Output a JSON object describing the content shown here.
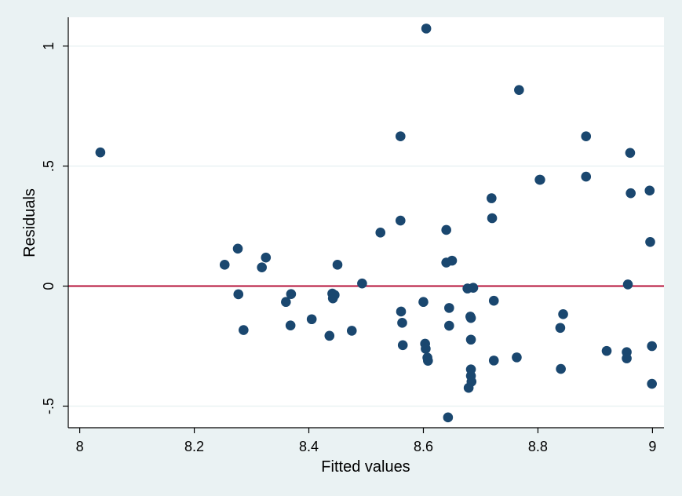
{
  "chart_data": {
    "type": "scatter",
    "title": "",
    "xlabel": "Fitted values",
    "ylabel": "Residuals",
    "xlim": [
      7.98,
      9.02
    ],
    "ylim": [
      -0.59,
      1.12
    ],
    "x_ticks": [
      8,
      8.2,
      8.4,
      8.6,
      8.8,
      9
    ],
    "x_tick_labels": [
      "8",
      "8.2",
      "8.4",
      "8.6",
      "8.8",
      "9"
    ],
    "y_ticks": [
      -0.5,
      0,
      0.5,
      1
    ],
    "y_tick_labels": [
      "-.5",
      "0",
      ".5",
      "1"
    ],
    "grid": "horizontal",
    "reference_line": {
      "y": 0,
      "color": "#b5123a"
    },
    "marker_color": "#1a476f",
    "background_outer": "#eaf2f3",
    "background_plot": "#ffffff",
    "gridline_color": "#eaf2f3",
    "points": [
      [
        8.036,
        0.557
      ],
      [
        8.253,
        0.089
      ],
      [
        8.276,
        0.156
      ],
      [
        8.277,
        -0.034
      ],
      [
        8.286,
        -0.183
      ],
      [
        8.318,
        0.078
      ],
      [
        8.325,
        0.119
      ],
      [
        8.36,
        -0.066
      ],
      [
        8.368,
        -0.164
      ],
      [
        8.369,
        -0.033
      ],
      [
        8.405,
        -0.138
      ],
      [
        8.436,
        -0.207
      ],
      [
        8.441,
        -0.031
      ],
      [
        8.442,
        -0.051
      ],
      [
        8.445,
        -0.037
      ],
      [
        8.45,
        0.089
      ],
      [
        8.475,
        -0.186
      ],
      [
        8.493,
        0.011
      ],
      [
        8.525,
        0.223
      ],
      [
        8.56,
        0.624
      ],
      [
        8.56,
        0.273
      ],
      [
        8.561,
        -0.106
      ],
      [
        8.563,
        -0.153
      ],
      [
        8.564,
        -0.246
      ],
      [
        8.6,
        -0.066
      ],
      [
        8.603,
        -0.24
      ],
      [
        8.604,
        -0.261
      ],
      [
        8.605,
        1.073
      ],
      [
        8.607,
        -0.298
      ],
      [
        8.608,
        -0.311
      ],
      [
        8.64,
        0.234
      ],
      [
        8.64,
        0.098
      ],
      [
        8.645,
        -0.091
      ],
      [
        8.645,
        -0.165
      ],
      [
        8.643,
        -0.547
      ],
      [
        8.65,
        0.106
      ],
      [
        8.677,
        -0.01
      ],
      [
        8.679,
        -0.424
      ],
      [
        8.682,
        -0.127
      ],
      [
        8.683,
        -0.133
      ],
      [
        8.683,
        -0.223
      ],
      [
        8.683,
        -0.347
      ],
      [
        8.683,
        -0.374
      ],
      [
        8.684,
        -0.398
      ],
      [
        8.687,
        -0.007
      ],
      [
        8.719,
        0.366
      ],
      [
        8.72,
        0.283
      ],
      [
        8.723,
        -0.061
      ],
      [
        8.723,
        -0.31
      ],
      [
        8.763,
        -0.297
      ],
      [
        8.767,
        0.817
      ],
      [
        8.803,
        0.443
      ],
      [
        8.804,
        0.443
      ],
      [
        8.839,
        -0.174
      ],
      [
        8.84,
        -0.345
      ],
      [
        8.844,
        -0.117
      ],
      [
        8.884,
        0.624
      ],
      [
        8.884,
        0.456
      ],
      [
        8.92,
        -0.27
      ],
      [
        8.955,
        -0.275
      ],
      [
        8.955,
        -0.301
      ],
      [
        8.957,
        0.007
      ],
      [
        8.961,
        0.555
      ],
      [
        8.962,
        0.387
      ],
      [
        8.995,
        0.398
      ],
      [
        8.996,
        0.184
      ],
      [
        8.999,
        -0.25
      ],
      [
        8.999,
        -0.407
      ]
    ]
  }
}
